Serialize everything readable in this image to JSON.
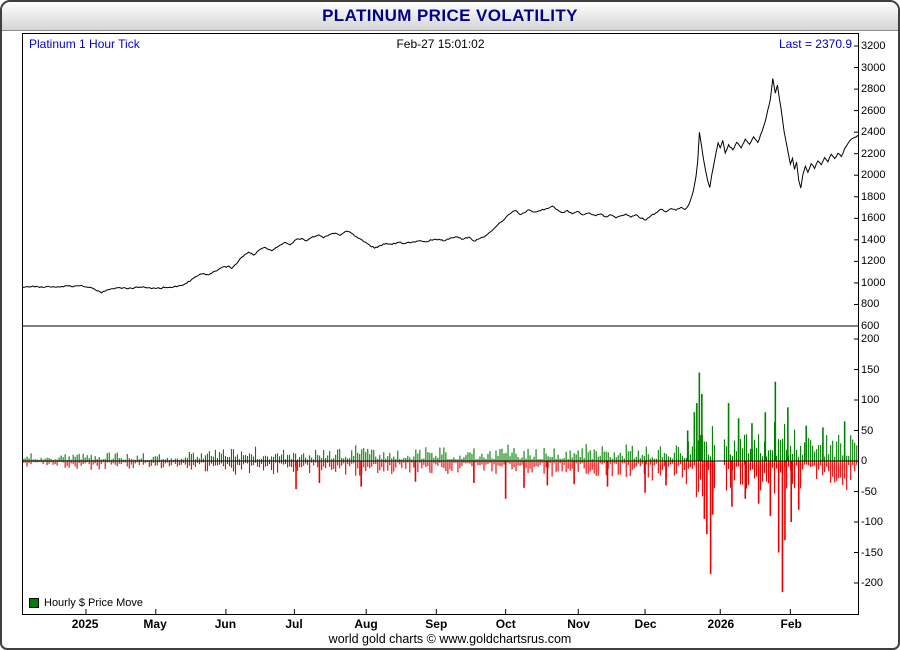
{
  "title": "PLATINUM PRICE VOLATILITY",
  "header": {
    "series_label": "Platinum 1 Hour Tick",
    "timestamp": "Feb-27  15:01:02",
    "last_label": "Last = 2370.9"
  },
  "legend": {
    "label": "Hourly $ Price Move",
    "swatch_color": "#008000"
  },
  "footer": "world gold charts © www.goldchartsrus.com",
  "colors": {
    "title_blue": "#00008b",
    "label_blue": "#0000cd",
    "line": "#000000",
    "up": "#008000",
    "down": "#e80000"
  },
  "x_axis": [
    {
      "label": "2025",
      "pos": 0.0754
    },
    {
      "label": "May",
      "pos": 0.159
    },
    {
      "label": "Jun",
      "pos": 0.243
    },
    {
      "label": "Jul",
      "pos": 0.325
    },
    {
      "label": "Aug",
      "pos": 0.411
    },
    {
      "label": "Sep",
      "pos": 0.495
    },
    {
      "label": "Oct",
      "pos": 0.578
    },
    {
      "label": "Nov",
      "pos": 0.665
    },
    {
      "label": "Dec",
      "pos": 0.745
    },
    {
      "label": "2026",
      "pos": 0.835
    },
    {
      "label": "Feb",
      "pos": 0.919
    }
  ],
  "chart_data": [
    {
      "type": "line",
      "title": "Platinum 1 Hour Tick",
      "color": "#000000",
      "ylim": [
        600,
        3200
      ],
      "yticks": [
        3200,
        3000,
        2800,
        2600,
        2400,
        2200,
        2000,
        1800,
        1600,
        1400,
        1200,
        1000,
        800,
        600
      ],
      "jitter": 7,
      "points": [
        [
          0.0,
          960
        ],
        [
          0.01,
          968
        ],
        [
          0.02,
          958
        ],
        [
          0.03,
          970
        ],
        [
          0.04,
          962
        ],
        [
          0.05,
          972
        ],
        [
          0.06,
          965
        ],
        [
          0.07,
          975
        ],
        [
          0.08,
          958
        ],
        [
          0.088,
          930
        ],
        [
          0.094,
          905
        ],
        [
          0.1,
          935
        ],
        [
          0.11,
          948
        ],
        [
          0.12,
          955
        ],
        [
          0.13,
          948
        ],
        [
          0.14,
          962
        ],
        [
          0.15,
          955
        ],
        [
          0.16,
          948
        ],
        [
          0.17,
          958
        ],
        [
          0.18,
          962
        ],
        [
          0.19,
          978
        ],
        [
          0.2,
          1015
        ],
        [
          0.208,
          1060
        ],
        [
          0.215,
          1085
        ],
        [
          0.222,
          1075
        ],
        [
          0.23,
          1110
        ],
        [
          0.238,
          1140
        ],
        [
          0.245,
          1155
        ],
        [
          0.25,
          1135
        ],
        [
          0.256,
          1180
        ],
        [
          0.262,
          1240
        ],
        [
          0.27,
          1285
        ],
        [
          0.276,
          1260
        ],
        [
          0.283,
          1305
        ],
        [
          0.29,
          1330
        ],
        [
          0.298,
          1300
        ],
        [
          0.306,
          1340
        ],
        [
          0.314,
          1375
        ],
        [
          0.32,
          1355
        ],
        [
          0.327,
          1400
        ],
        [
          0.334,
          1415
        ],
        [
          0.34,
          1390
        ],
        [
          0.347,
          1430
        ],
        [
          0.354,
          1445
        ],
        [
          0.36,
          1420
        ],
        [
          0.367,
          1452
        ],
        [
          0.374,
          1462
        ],
        [
          0.38,
          1440
        ],
        [
          0.388,
          1482
        ],
        [
          0.395,
          1455
        ],
        [
          0.401,
          1420
        ],
        [
          0.408,
          1382
        ],
        [
          0.415,
          1352
        ],
        [
          0.421,
          1322
        ],
        [
          0.428,
          1348
        ],
        [
          0.435,
          1368
        ],
        [
          0.442,
          1358
        ],
        [
          0.45,
          1375
        ],
        [
          0.458,
          1368
        ],
        [
          0.466,
          1380
        ],
        [
          0.474,
          1390
        ],
        [
          0.482,
          1383
        ],
        [
          0.49,
          1398
        ],
        [
          0.498,
          1408
        ],
        [
          0.505,
          1393
        ],
        [
          0.512,
          1418
        ],
        [
          0.52,
          1428
        ],
        [
          0.527,
          1408
        ],
        [
          0.534,
          1428
        ],
        [
          0.54,
          1388
        ],
        [
          0.547,
          1412
        ],
        [
          0.554,
          1440
        ],
        [
          0.56,
          1478
        ],
        [
          0.566,
          1520
        ],
        [
          0.572,
          1562
        ],
        [
          0.578,
          1605
        ],
        [
          0.584,
          1645
        ],
        [
          0.59,
          1672
        ],
        [
          0.595,
          1635
        ],
        [
          0.6,
          1652
        ],
        [
          0.606,
          1678
        ],
        [
          0.612,
          1658
        ],
        [
          0.62,
          1672
        ],
        [
          0.628,
          1692
        ],
        [
          0.634,
          1715
        ],
        [
          0.64,
          1682
        ],
        [
          0.646,
          1652
        ],
        [
          0.652,
          1672
        ],
        [
          0.658,
          1642
        ],
        [
          0.664,
          1662
        ],
        [
          0.67,
          1632
        ],
        [
          0.678,
          1652
        ],
        [
          0.686,
          1622
        ],
        [
          0.692,
          1642
        ],
        [
          0.698,
          1612
        ],
        [
          0.704,
          1632
        ],
        [
          0.71,
          1602
        ],
        [
          0.716,
          1622
        ],
        [
          0.722,
          1642
        ],
        [
          0.728,
          1612
        ],
        [
          0.734,
          1632
        ],
        [
          0.74,
          1602
        ],
        [
          0.746,
          1582
        ],
        [
          0.752,
          1622
        ],
        [
          0.758,
          1652
        ],
        [
          0.764,
          1682
        ],
        [
          0.77,
          1662
        ],
        [
          0.776,
          1692
        ],
        [
          0.782,
          1672
        ],
        [
          0.788,
          1702
        ],
        [
          0.793,
          1682
        ],
        [
          0.797,
          1722
        ],
        [
          0.8,
          1782
        ],
        [
          0.803,
          1862
        ],
        [
          0.806,
          1990
        ],
        [
          0.808,
          2130
        ],
        [
          0.81,
          2400
        ],
        [
          0.8125,
          2280
        ],
        [
          0.815,
          2150
        ],
        [
          0.8175,
          2040
        ],
        [
          0.82,
          1950
        ],
        [
          0.8225,
          1885
        ],
        [
          0.825,
          2010
        ],
        [
          0.8275,
          2110
        ],
        [
          0.83,
          2210
        ],
        [
          0.8325,
          2300
        ],
        [
          0.835,
          2255
        ],
        [
          0.838,
          2325
        ],
        [
          0.841,
          2205
        ],
        [
          0.845,
          2285
        ],
        [
          0.85,
          2235
        ],
        [
          0.855,
          2305
        ],
        [
          0.86,
          2255
        ],
        [
          0.865,
          2335
        ],
        [
          0.87,
          2285
        ],
        [
          0.875,
          2355
        ],
        [
          0.88,
          2305
        ],
        [
          0.885,
          2405
        ],
        [
          0.889,
          2505
        ],
        [
          0.892,
          2605
        ],
        [
          0.895,
          2705
        ],
        [
          0.898,
          2900
        ],
        [
          0.901,
          2760
        ],
        [
          0.9035,
          2835
        ],
        [
          0.906,
          2705
        ],
        [
          0.909,
          2555
        ],
        [
          0.9115,
          2405
        ],
        [
          0.914,
          2305
        ],
        [
          0.9165,
          2205
        ],
        [
          0.919,
          2105
        ],
        [
          0.9215,
          2155
        ],
        [
          0.924,
          2055
        ],
        [
          0.9265,
          2125
        ],
        [
          0.929,
          1955
        ],
        [
          0.9315,
          1878
        ],
        [
          0.934,
          2005
        ],
        [
          0.937,
          2085
        ],
        [
          0.94,
          2025
        ],
        [
          0.944,
          2105
        ],
        [
          0.948,
          2065
        ],
        [
          0.952,
          2135
        ],
        [
          0.956,
          2095
        ],
        [
          0.96,
          2165
        ],
        [
          0.964,
          2125
        ],
        [
          0.968,
          2195
        ],
        [
          0.972,
          2155
        ],
        [
          0.976,
          2205
        ],
        [
          0.98,
          2175
        ],
        [
          0.984,
          2245
        ],
        [
          0.988,
          2295
        ],
        [
          0.992,
          2335
        ],
        [
          1.0,
          2371
        ]
      ]
    },
    {
      "type": "bar",
      "title": "Hourly $ Price Move",
      "color_up": "#008000",
      "color_down": "#e80000",
      "ylim": [
        -250,
        225
      ],
      "yticks": [
        200,
        150,
        100,
        50,
        0,
        -50,
        -100,
        -150,
        -200
      ],
      "envelope": [
        [
          0,
          13
        ],
        [
          0.05,
          13
        ],
        [
          0.09,
          16
        ],
        [
          0.13,
          13
        ],
        [
          0.17,
          13
        ],
        [
          0.2,
          15
        ],
        [
          0.24,
          20
        ],
        [
          0.27,
          26
        ],
        [
          0.3,
          22
        ],
        [
          0.33,
          20
        ],
        [
          0.36,
          23
        ],
        [
          0.4,
          26
        ],
        [
          0.43,
          22
        ],
        [
          0.46,
          21
        ],
        [
          0.5,
          24
        ],
        [
          0.53,
          23
        ],
        [
          0.56,
          26
        ],
        [
          0.58,
          28
        ],
        [
          0.61,
          24
        ],
        [
          0.64,
          26
        ],
        [
          0.67,
          28
        ],
        [
          0.7,
          28
        ],
        [
          0.73,
          31
        ],
        [
          0.75,
          33
        ],
        [
          0.77,
          30
        ],
        [
          0.79,
          36
        ],
        [
          0.8,
          48
        ],
        [
          0.81,
          75
        ],
        [
          0.82,
          65
        ],
        [
          0.83,
          55
        ],
        [
          0.84,
          52
        ],
        [
          0.85,
          46
        ],
        [
          0.86,
          50
        ],
        [
          0.87,
          46
        ],
        [
          0.88,
          52
        ],
        [
          0.89,
          60
        ],
        [
          0.9,
          72
        ],
        [
          0.91,
          66
        ],
        [
          0.92,
          56
        ],
        [
          0.93,
          52
        ],
        [
          0.94,
          46
        ],
        [
          0.95,
          42
        ],
        [
          0.96,
          44
        ],
        [
          0.97,
          42
        ],
        [
          0.98,
          46
        ],
        [
          0.99,
          50
        ],
        [
          1.0,
          46
        ]
      ],
      "spikes": [
        [
          0.327,
          -46
        ],
        [
          0.355,
          -36
        ],
        [
          0.405,
          -42
        ],
        [
          0.47,
          -34
        ],
        [
          0.54,
          -36
        ],
        [
          0.578,
          -62
        ],
        [
          0.6,
          -44
        ],
        [
          0.628,
          -40
        ],
        [
          0.66,
          -38
        ],
        [
          0.7,
          -42
        ],
        [
          0.745,
          -52
        ],
        [
          0.77,
          -40
        ],
        [
          0.796,
          50
        ],
        [
          0.804,
          80
        ],
        [
          0.807,
          95
        ],
        [
          0.81,
          145
        ],
        [
          0.813,
          110
        ],
        [
          0.816,
          -95
        ],
        [
          0.819,
          -120
        ],
        [
          0.8235,
          -185
        ],
        [
          0.826,
          -88
        ],
        [
          0.845,
          95
        ],
        [
          0.849,
          -75
        ],
        [
          0.857,
          70
        ],
        [
          0.865,
          -62
        ],
        [
          0.873,
          62
        ],
        [
          0.881,
          -70
        ],
        [
          0.889,
          80
        ],
        [
          0.895,
          -90
        ],
        [
          0.901,
          130
        ],
        [
          0.905,
          -150
        ],
        [
          0.9095,
          -215
        ],
        [
          0.9125,
          -130
        ],
        [
          0.916,
          88
        ],
        [
          0.92,
          -100
        ],
        [
          0.929,
          -80
        ],
        [
          0.938,
          58
        ],
        [
          0.958,
          55
        ],
        [
          0.984,
          65
        ]
      ],
      "gaps": [
        [
          0.828,
          0.839
        ]
      ]
    }
  ]
}
